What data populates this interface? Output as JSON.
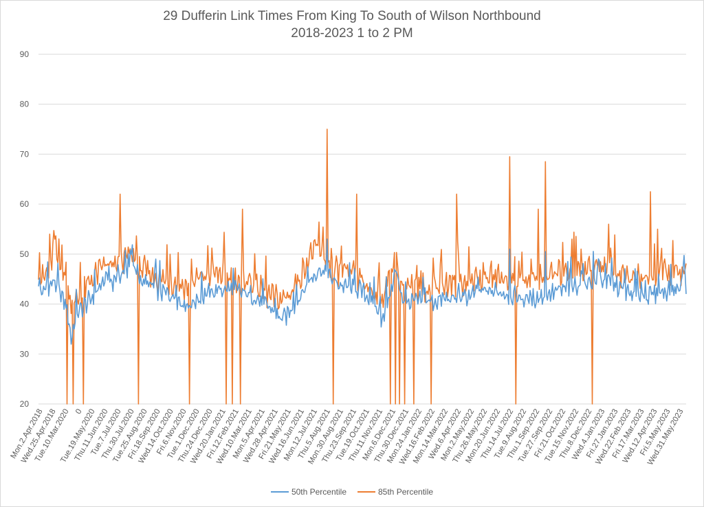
{
  "chart_data": {
    "type": "line",
    "title": "29 Dufferin Link Times From King To South of Wilson Northbound",
    "subtitle": "2018-2023 1 to 2 PM",
    "xlabel": "",
    "ylabel": "",
    "ylim": [
      20,
      90
    ],
    "yticks": [
      20,
      30,
      40,
      50,
      60,
      70,
      80,
      90
    ],
    "grid": true,
    "legend_position": "bottom",
    "tick_labels": [
      "Mon.2.Apr.2018",
      "Wed.25.Apr.2018",
      "Tue.10.Mar.2020",
      "0",
      "Tue.19.May.2020",
      "Thu.11.Jun.2020",
      "Tue.7.Jul.2020",
      "Thu.30.Jul.2020",
      "Tue.25.Aug.2020",
      "Fri.18.Sep.2020",
      "Wed.14.Oct.2020",
      "Fri.6.Nov.2020",
      "Tue.1.Dec.2020",
      "Thu.24.Dec.2020",
      "Wed.20.Jan.2021",
      "Fri.12.Feb.2021",
      "Wed.10.Mar.2021",
      "Mon.5.Apr.2021",
      "Wed.28.Apr.2021",
      "Fri.21.May.2021",
      "Wed.16.Jun.2021",
      "Mon.12.Jul.2021",
      "Thu.5.Aug.2021",
      "Mon.30.Aug.2021",
      "Thu.23.Sep.2021",
      "Tue.19.Oct.2021",
      "Thu.11.Nov.2021",
      "Mon.6.Dec.2021",
      "Thu.30.Dec.2021",
      "Mon.24.Jan.2022",
      "Wed.16.Feb.2022",
      "Mon.14.Mar.2022",
      "Wed.6.Apr.2022",
      "Mon.2.May.2022",
      "Thu.26.May.2022",
      "Mon.20.Jun.2022",
      "Thu.14.Jul.2022",
      "Tue.9.Aug.2022",
      "Thu.1.Sep.2022",
      "Tue.27.Sep.2022",
      "Fri.21.Oct.2022",
      "Tue.15.Nov.2022",
      "Thu.8.Dec.2022",
      "Wed.4.Jan.2023",
      "Fri.27.Jan.2023",
      "Wed.22.Feb.2023",
      "Fri.17.Mar.2023",
      "Wed.12.Apr.2023",
      "Fri.5.May.2023",
      "Wed.31.May.2023"
    ],
    "series": [
      {
        "name": "50th Percentile",
        "color": "#5b9bd5",
        "keyframes": [
          [
            0,
            44.5
          ],
          [
            2,
            43
          ],
          [
            5,
            42
          ],
          [
            8,
            44
          ],
          [
            12,
            43.5
          ],
          [
            15,
            45
          ],
          [
            18,
            43
          ],
          [
            22,
            42
          ],
          [
            24,
            41
          ],
          [
            28,
            39
          ],
          [
            32,
            33
          ],
          [
            35,
            36
          ],
          [
            38,
            38
          ],
          [
            42,
            39
          ],
          [
            46,
            40
          ],
          [
            52,
            41
          ],
          [
            58,
            43
          ],
          [
            64,
            44
          ],
          [
            72,
            44.5
          ],
          [
            78,
            46
          ],
          [
            84,
            46
          ],
          [
            90,
            47
          ],
          [
            96,
            46.5
          ],
          [
            102,
            44.5
          ],
          [
            108,
            44
          ],
          [
            114,
            43
          ],
          [
            120,
            42.5
          ],
          [
            128,
            42
          ],
          [
            136,
            41
          ],
          [
            144,
            40
          ],
          [
            150,
            40
          ],
          [
            156,
            41
          ],
          [
            164,
            42
          ],
          [
            172,
            42.5
          ],
          [
            180,
            43
          ],
          [
            188,
            43
          ],
          [
            196,
            42.5
          ],
          [
            204,
            42
          ],
          [
            212,
            41.5
          ],
          [
            220,
            40
          ],
          [
            228,
            39
          ],
          [
            234,
            37.5
          ],
          [
            240,
            37
          ],
          [
            246,
            38.5
          ],
          [
            252,
            40
          ],
          [
            258,
            42
          ],
          [
            264,
            44
          ],
          [
            270,
            46
          ],
          [
            276,
            47
          ],
          [
            282,
            46
          ],
          [
            288,
            45
          ],
          [
            294,
            44
          ],
          [
            300,
            43.5
          ],
          [
            308,
            43
          ],
          [
            314,
            43
          ],
          [
            320,
            42
          ],
          [
            326,
            40.5
          ],
          [
            332,
            39
          ],
          [
            336,
            37
          ],
          [
            342,
            40
          ],
          [
            346,
            43
          ],
          [
            350,
            47
          ],
          [
            354,
            43
          ],
          [
            358,
            41
          ],
          [
            362,
            40
          ],
          [
            366,
            40.5
          ],
          [
            372,
            40.5
          ],
          [
            380,
            40.5
          ],
          [
            388,
            40.5
          ],
          [
            396,
            41
          ],
          [
            404,
            41
          ],
          [
            412,
            41
          ],
          [
            420,
            41.5
          ],
          [
            428,
            42
          ],
          [
            436,
            42.5
          ],
          [
            444,
            42.5
          ],
          [
            452,
            42.5
          ],
          [
            460,
            42
          ],
          [
            468,
            41.5
          ],
          [
            476,
            41
          ],
          [
            484,
            41
          ],
          [
            492,
            41.5
          ],
          [
            500,
            42
          ],
          [
            508,
            42.5
          ],
          [
            516,
            43
          ],
          [
            524,
            43.5
          ],
          [
            532,
            44
          ],
          [
            540,
            44.5
          ],
          [
            548,
            45
          ],
          [
            556,
            44.5
          ],
          [
            564,
            44
          ],
          [
            572,
            43
          ],
          [
            580,
            42
          ],
          [
            588,
            41.5
          ],
          [
            596,
            41.5
          ],
          [
            604,
            42
          ],
          [
            612,
            42.5
          ],
          [
            620,
            43
          ],
          [
            628,
            43
          ],
          [
            635,
            43.5
          ]
        ]
      },
      {
        "name": "85th Percentile",
        "color": "#ed7d31",
        "keyframes": [
          [
            0,
            46
          ],
          [
            4,
            45
          ],
          [
            8,
            46
          ],
          [
            12,
            47
          ],
          [
            15,
            53
          ],
          [
            18,
            47
          ],
          [
            22,
            48
          ],
          [
            24,
            46
          ],
          [
            28,
            43
          ],
          [
            32,
            41
          ],
          [
            35,
            40
          ],
          [
            38,
            41
          ],
          [
            42,
            42
          ],
          [
            46,
            43
          ],
          [
            52,
            45
          ],
          [
            58,
            46
          ],
          [
            64,
            48
          ],
          [
            72,
            47
          ],
          [
            78,
            48
          ],
          [
            84,
            49
          ],
          [
            90,
            50
          ],
          [
            96,
            49
          ],
          [
            102,
            47
          ],
          [
            108,
            46
          ],
          [
            114,
            45.5
          ],
          [
            120,
            45
          ],
          [
            128,
            44.5
          ],
          [
            136,
            44
          ],
          [
            144,
            43.5
          ],
          [
            150,
            44
          ],
          [
            156,
            45
          ],
          [
            164,
            45.5
          ],
          [
            172,
            46
          ],
          [
            180,
            46
          ],
          [
            188,
            45.5
          ],
          [
            196,
            45
          ],
          [
            204,
            45
          ],
          [
            212,
            44
          ],
          [
            220,
            42.5
          ],
          [
            228,
            41.5
          ],
          [
            234,
            41
          ],
          [
            240,
            41
          ],
          [
            246,
            42
          ],
          [
            252,
            44
          ],
          [
            258,
            46
          ],
          [
            264,
            49
          ],
          [
            270,
            51
          ],
          [
            276,
            50
          ],
          [
            282,
            48
          ],
          [
            288,
            47
          ],
          [
            294,
            46.5
          ],
          [
            300,
            46
          ],
          [
            308,
            45.5
          ],
          [
            314,
            45
          ],
          [
            320,
            44
          ],
          [
            326,
            43
          ],
          [
            332,
            42
          ],
          [
            336,
            41
          ],
          [
            342,
            44
          ],
          [
            346,
            47
          ],
          [
            350,
            50
          ],
          [
            354,
            46
          ],
          [
            358,
            44
          ],
          [
            362,
            43
          ],
          [
            366,
            43
          ],
          [
            372,
            43
          ],
          [
            380,
            43.5
          ],
          [
            388,
            43.5
          ],
          [
            396,
            44
          ],
          [
            404,
            44
          ],
          [
            412,
            44.5
          ],
          [
            420,
            44.5
          ],
          [
            428,
            45
          ],
          [
            436,
            45.5
          ],
          [
            444,
            45.5
          ],
          [
            452,
            45.5
          ],
          [
            460,
            45
          ],
          [
            468,
            44.5
          ],
          [
            476,
            44.5
          ],
          [
            484,
            44.5
          ],
          [
            492,
            45
          ],
          [
            500,
            45.5
          ],
          [
            508,
            46
          ],
          [
            516,
            46.5
          ],
          [
            524,
            47
          ],
          [
            532,
            47
          ],
          [
            540,
            47.5
          ],
          [
            548,
            48
          ],
          [
            556,
            48
          ],
          [
            564,
            47
          ],
          [
            572,
            46
          ],
          [
            580,
            45.5
          ],
          [
            588,
            45
          ],
          [
            596,
            45
          ],
          [
            604,
            45.5
          ],
          [
            612,
            46
          ],
          [
            620,
            46
          ],
          [
            628,
            46
          ],
          [
            635,
            47
          ]
        ]
      }
    ],
    "spikes_85th": [
      [
        11,
        54
      ],
      [
        14,
        52
      ],
      [
        80,
        62
      ],
      [
        200,
        59
      ],
      [
        283,
        75
      ],
      [
        312,
        62
      ],
      [
        410,
        62
      ],
      [
        462,
        69.5
      ],
      [
        490,
        59
      ],
      [
        497,
        68.5
      ],
      [
        523,
        53
      ],
      [
        532,
        51
      ],
      [
        600,
        62.5
      ],
      [
        607,
        55
      ]
    ],
    "spikes_50th": [
      [
        283,
        53
      ],
      [
        462,
        51
      ],
      [
        497,
        50.5
      ],
      [
        608,
        46
      ]
    ],
    "dropouts_85th": [
      28,
      34,
      44,
      98,
      148,
      184,
      190,
      198,
      289,
      345,
      350,
      354,
      359,
      368,
      385,
      468,
      543
    ],
    "n_points": 636
  },
  "legend": {
    "series1_label": "50th Percentile",
    "series2_label": "85th Percentile"
  }
}
